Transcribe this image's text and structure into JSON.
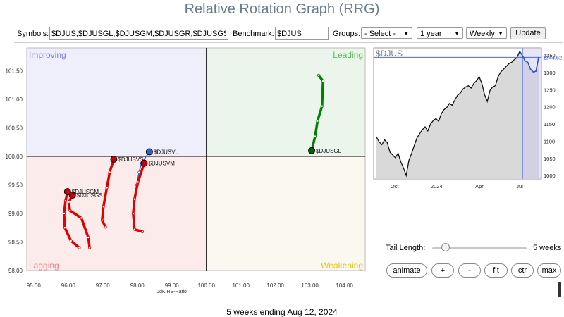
{
  "title": "Relative Rotation Graph (RRG)",
  "controls": {
    "symbols_label": "Symbols:",
    "symbols_value": "$DJUS,$DJUSGL,$DJUSGM,$DJUSGR,$DJUSGS",
    "benchmark_label": "Benchmark:",
    "benchmark_value": "$DJUS",
    "groups_label": "Groups:",
    "groups_value": "- Select -",
    "period_value": "1 year",
    "frequency_value": "Weekly",
    "update_label": "Update"
  },
  "chart_data": [
    {
      "type": "scatter",
      "name": "rrg",
      "xlabel": "JdK RS-Ratio",
      "ylabel": "",
      "xlim": [
        94.8,
        104.6
      ],
      "ylim": [
        98.0,
        101.9
      ],
      "center": [
        100,
        100
      ],
      "x_ticks": [
        "95.00",
        "96.00",
        "97.00",
        "98.00",
        "99.00",
        "100.00",
        "101.00",
        "102.00",
        "103.00",
        "104.00"
      ],
      "y_ticks": [
        "98.00",
        "98.50",
        "99.00",
        "99.50",
        "100.00",
        "100.50",
        "101.00",
        "101.50"
      ],
      "quadrants": {
        "improving": {
          "label": "Improving",
          "color": "#7f80e0",
          "fill": "#efeffb"
        },
        "leading": {
          "label": "Leading",
          "color": "#5cb85c",
          "fill": "#ebf5eb"
        },
        "weakening": {
          "label": "Weakening",
          "color": "#e8c020",
          "fill": "#fbf8ef"
        },
        "lagging": {
          "label": "Lagging",
          "color": "#f08080",
          "fill": "#fbebeb"
        }
      },
      "series": [
        {
          "name": "$DJUSGL",
          "color": "#008000",
          "points": [
            [
              103.25,
              101.42
            ],
            [
              103.38,
              101.32
            ],
            [
              103.35,
              100.88
            ],
            [
              103.22,
              100.62
            ],
            [
              103.15,
              100.35
            ],
            [
              103.05,
              100.1
            ]
          ]
        },
        {
          "name": "$DJUSVL",
          "color": "#2a6fd6",
          "points": [
            [
              97.98,
              99.5
            ],
            [
              98.05,
              99.72
            ],
            [
              98.12,
              99.88
            ],
            [
              98.35,
              100.08
            ]
          ]
        },
        {
          "name": "$DJUSVM",
          "color": "#e00000",
          "points": [
            [
              98.15,
              98.68
            ],
            [
              97.92,
              98.72
            ],
            [
              97.88,
              99.0
            ],
            [
              97.92,
              99.25
            ],
            [
              98.02,
              99.55
            ],
            [
              98.2,
              99.88
            ]
          ]
        },
        {
          "name": "$DJUSVS",
          "color": "#e00000",
          "points": [
            [
              97.08,
              98.76
            ],
            [
              96.98,
              98.88
            ],
            [
              97.02,
              99.12
            ],
            [
              97.12,
              99.45
            ],
            [
              97.2,
              99.72
            ],
            [
              97.32,
              99.95
            ]
          ]
        },
        {
          "name": "$DJUSGM",
          "color": "#e00000",
          "points": [
            [
              96.32,
              98.4
            ],
            [
              96.08,
              98.52
            ],
            [
              95.9,
              98.75
            ],
            [
              95.88,
              99.0
            ],
            [
              95.92,
              99.22
            ],
            [
              95.98,
              99.38
            ]
          ]
        },
        {
          "name": "$DJUSGS",
          "color": "#e00000",
          "points": [
            [
              96.62,
              98.4
            ],
            [
              96.58,
              98.58
            ],
            [
              96.38,
              98.92
            ],
            [
              96.05,
              99.05
            ],
            [
              96.02,
              99.2
            ],
            [
              96.12,
              99.32
            ]
          ]
        }
      ]
    },
    {
      "type": "area",
      "name": "benchmark",
      "title": "$DJUS",
      "last_value_label": "1344.62",
      "x_tick_labels": [
        "Oct",
        "2024",
        "Apr",
        "Jul"
      ],
      "y_tick_labels": [
        "1000",
        "1050",
        "1100",
        "1150",
        "1200",
        "1250",
        "1300",
        "1350"
      ],
      "ylim": [
        990,
        1372
      ],
      "values": [
        1112,
        1098,
        1090,
        1104,
        1096,
        1068,
        1060,
        1052,
        1065,
        1040,
        1022,
        1000,
        1044,
        1064,
        1088,
        1110,
        1122,
        1134,
        1142,
        1130,
        1150,
        1160,
        1166,
        1158,
        1180,
        1192,
        1198,
        1210,
        1205,
        1220,
        1234,
        1240,
        1252,
        1258,
        1262,
        1255,
        1268,
        1276,
        1288,
        1268,
        1236,
        1216,
        1248,
        1258,
        1262,
        1288,
        1302,
        1310,
        1318,
        1326,
        1330,
        1338,
        1344,
        1362,
        1350,
        1334,
        1330,
        1310,
        1302,
        1304,
        1344.62
      ]
    }
  ],
  "tail": {
    "label": "Tail Length:",
    "value": "5 weeks",
    "fraction": 0.1
  },
  "buttons": {
    "animate": "animate",
    "plus": "+",
    "minus": "-",
    "fit": "fit",
    "ctr": "ctr",
    "max": "max"
  },
  "footer": "5 weeks ending Aug 12, 2024"
}
